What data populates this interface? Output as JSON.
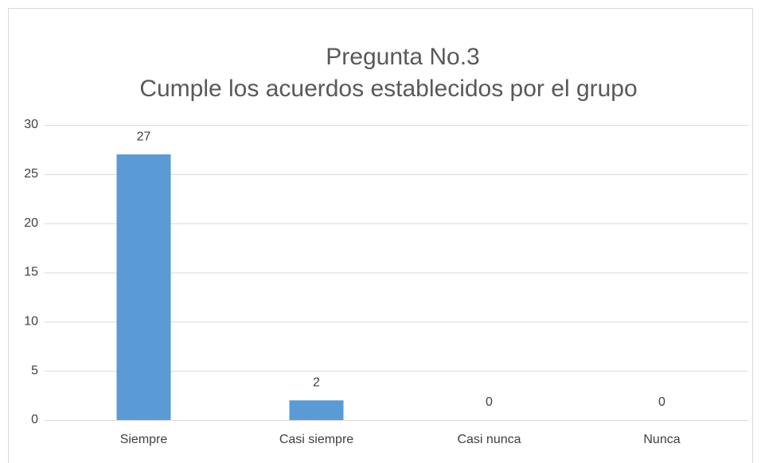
{
  "chart_data": {
    "type": "bar",
    "title": "Pregunta No.3",
    "subtitle": "Cumple los acuerdos establecidos por el grupo",
    "categories": [
      "Siempre",
      "Casi siempre",
      "Casi nunca",
      "Nunca"
    ],
    "values": [
      27,
      2,
      0,
      0
    ],
    "color": "#5b9bd5",
    "ylim": [
      0,
      30
    ],
    "yticks": [
      0,
      5,
      10,
      15,
      20,
      25,
      30
    ],
    "grid": true
  }
}
